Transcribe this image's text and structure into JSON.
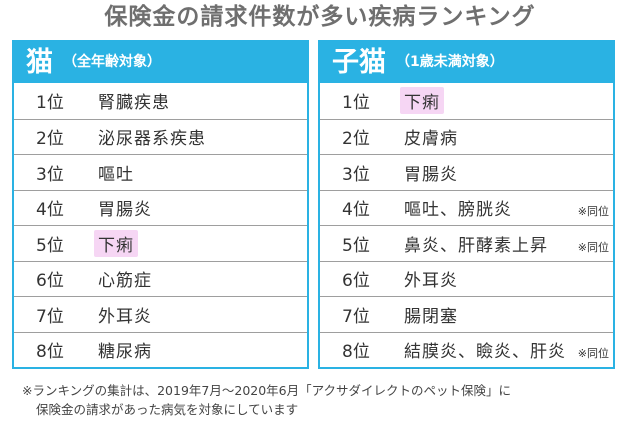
{
  "title": "保険金の請求件数が多い疾病ランキング",
  "cat": {
    "heading": "猫",
    "subheading": "（全年齢対象）",
    "rows": [
      {
        "rank": "1位",
        "disease": "腎臓疾患",
        "highlight": false,
        "note": ""
      },
      {
        "rank": "2位",
        "disease": "泌尿器系疾患",
        "highlight": false,
        "note": ""
      },
      {
        "rank": "3位",
        "disease": "嘔吐",
        "highlight": false,
        "note": ""
      },
      {
        "rank": "4位",
        "disease": "胃腸炎",
        "highlight": false,
        "note": ""
      },
      {
        "rank": "5位",
        "disease": "下痢",
        "highlight": true,
        "note": ""
      },
      {
        "rank": "6位",
        "disease": "心筋症",
        "highlight": false,
        "note": ""
      },
      {
        "rank": "7位",
        "disease": "外耳炎",
        "highlight": false,
        "note": ""
      },
      {
        "rank": "8位",
        "disease": "糖尿病",
        "highlight": false,
        "note": ""
      }
    ]
  },
  "kitten": {
    "heading": "子猫",
    "subheading": "（1歳未満対象）",
    "rows": [
      {
        "rank": "1位",
        "disease": "下痢",
        "highlight": true,
        "note": ""
      },
      {
        "rank": "2位",
        "disease": "皮膚病",
        "highlight": false,
        "note": ""
      },
      {
        "rank": "3位",
        "disease": "胃腸炎",
        "highlight": false,
        "note": ""
      },
      {
        "rank": "4位",
        "disease": "嘔吐、膀胱炎",
        "highlight": false,
        "note": "※同位"
      },
      {
        "rank": "5位",
        "disease": "鼻炎、肝酵素上昇",
        "highlight": false,
        "note": "※同位"
      },
      {
        "rank": "6位",
        "disease": "外耳炎",
        "highlight": false,
        "note": ""
      },
      {
        "rank": "7位",
        "disease": "腸閉塞",
        "highlight": false,
        "note": ""
      },
      {
        "rank": "8位",
        "disease": "結膜炎、瞼炎、肝炎",
        "highlight": false,
        "note": "※同位"
      }
    ]
  },
  "footnote": {
    "line1": "※ランキングの集計は、2019年7月～2020年6月「アクサダイレクトのペット保険」に",
    "line2": "保険金の請求があった病気を対象にしています"
  },
  "colors": {
    "accent": "#2ab2e3",
    "highlight": "#f6d6f4",
    "title": "#6f6f6f"
  }
}
